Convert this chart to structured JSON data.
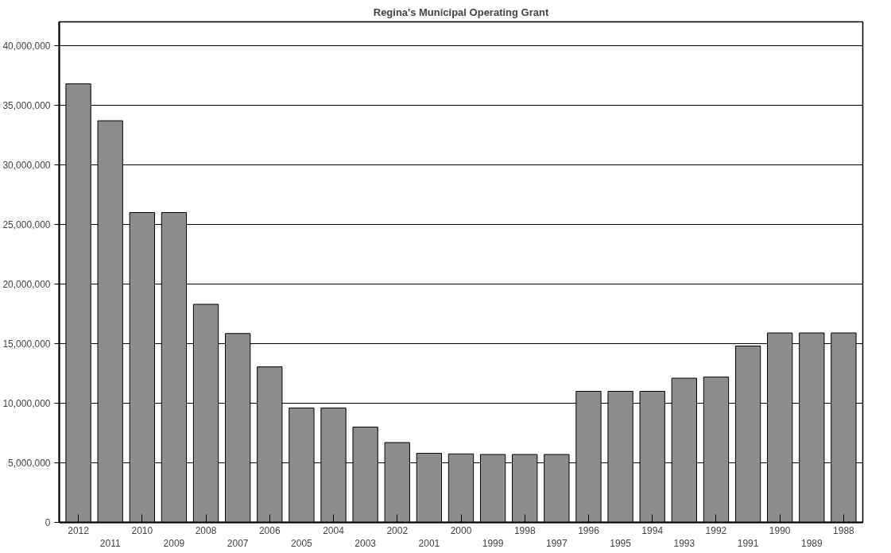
{
  "chart_data": {
    "type": "bar",
    "title": "Regina's Municipal Operating Grant",
    "categories": [
      "2012",
      "2011",
      "2010",
      "2009",
      "2008",
      "2007",
      "2006",
      "2005",
      "2004",
      "2003",
      "2002",
      "2001",
      "2000",
      "1999",
      "1998",
      "1997",
      "1996",
      "1995",
      "1994",
      "1993",
      "1992",
      "1991",
      "1990",
      "1989",
      "1988"
    ],
    "values": [
      36800000,
      33700000,
      26000000,
      26000000,
      18300000,
      15850000,
      13050000,
      9600000,
      9600000,
      8000000,
      6700000,
      5800000,
      5750000,
      5700000,
      5700000,
      5700000,
      11000000,
      11000000,
      11000000,
      12100000,
      12200000,
      14800000,
      15900000,
      15900000,
      15900000
    ],
    "color": "#8c8c8c",
    "ylim": [
      0,
      42000000
    ],
    "yticks": [
      {
        "value": 0,
        "label": "0"
      },
      {
        "value": 5000000,
        "label": "5,000,000"
      },
      {
        "value": 10000000,
        "label": "10,000,000"
      },
      {
        "value": 15000000,
        "label": "15,000,000"
      },
      {
        "value": 20000000,
        "label": "20,000,000"
      },
      {
        "value": 25000000,
        "label": "25,000,000"
      },
      {
        "value": 30000000,
        "label": "30,000,000"
      },
      {
        "value": 35000000,
        "label": "35,000,000"
      },
      {
        "value": 40000000,
        "label": "40,000,000"
      }
    ],
    "grid": "y"
  }
}
